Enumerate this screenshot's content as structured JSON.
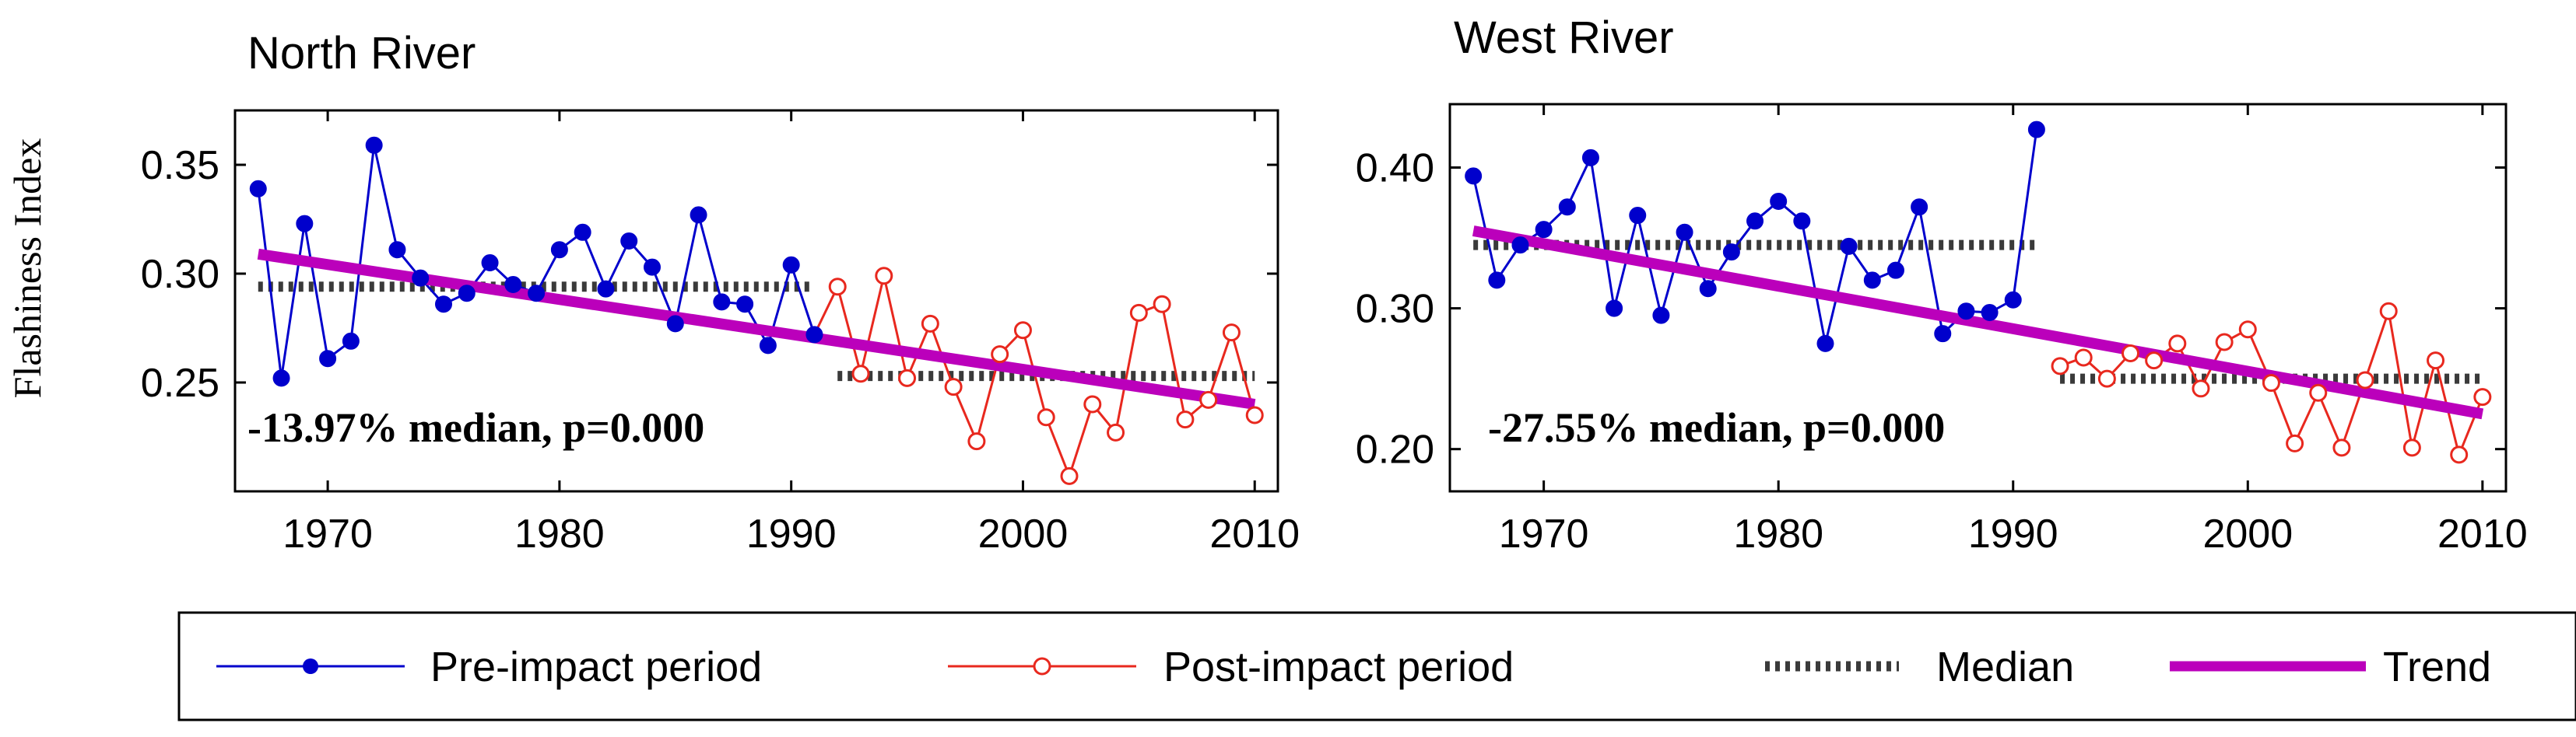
{
  "y_axis_label": "Flashiness Index",
  "colors": {
    "pre": "#0000CC",
    "post": "#E8281E",
    "median": "#3A3A3A",
    "trend": "#BB00BB"
  },
  "legend": {
    "pre": "Pre-impact period",
    "post": "Post-impact period",
    "median": "Median",
    "trend": "Trend"
  },
  "chart_data": [
    {
      "type": "line",
      "title": "North River",
      "ylabel": "Flashiness Index",
      "xlim": [
        1966,
        2011
      ],
      "ylim": [
        0.2,
        0.375
      ],
      "xticks": [
        1970,
        1980,
        1990,
        2000,
        2010
      ],
      "yticks": [
        0.25,
        0.3,
        0.35
      ],
      "ytick_labels": [
        "0.25",
        "0.30",
        "0.35"
      ],
      "annotation": "-13.97% median, p=0.000",
      "series": [
        {
          "name": "Pre-impact period",
          "x": [
            1967,
            1968,
            1969,
            1970,
            1971,
            1972,
            1973,
            1974,
            1975,
            1976,
            1977,
            1978,
            1979,
            1980,
            1981,
            1982,
            1983,
            1984,
            1985,
            1986,
            1987,
            1988,
            1989,
            1990,
            1991
          ],
          "y": [
            0.339,
            0.252,
            0.323,
            0.261,
            0.269,
            0.359,
            0.311,
            0.298,
            0.286,
            0.291,
            0.305,
            0.295,
            0.291,
            0.311,
            0.319,
            0.293,
            0.315,
            0.303,
            0.277,
            0.327,
            0.287,
            0.286,
            0.267,
            0.304,
            0.272
          ]
        },
        {
          "name": "Post-impact period",
          "x": [
            1991,
            1992,
            1993,
            1994,
            1995,
            1996,
            1997,
            1998,
            1999,
            2000,
            2001,
            2002,
            2003,
            2004,
            2005,
            2006,
            2007,
            2008,
            2009,
            2010
          ],
          "y": [
            0.272,
            0.294,
            0.254,
            0.299,
            0.252,
            0.277,
            0.248,
            0.223,
            0.263,
            0.274,
            0.234,
            0.207,
            0.24,
            0.227,
            0.282,
            0.286,
            0.233,
            0.242,
            0.273,
            0.235
          ]
        }
      ],
      "medians": [
        {
          "name": "Median",
          "x": [
            1967,
            1991
          ],
          "y": 0.294
        },
        {
          "name": "Median",
          "x": [
            1992,
            2010
          ],
          "y": 0.253
        }
      ],
      "trend": {
        "name": "Trend",
        "x": [
          1967,
          2010
        ],
        "y": [
          0.309,
          0.24
        ]
      }
    },
    {
      "type": "line",
      "title": "West River",
      "ylabel": "",
      "xlim": [
        1966,
        2011
      ],
      "ylim": [
        0.17,
        0.445
      ],
      "xticks": [
        1970,
        1980,
        1990,
        2000,
        2010
      ],
      "yticks": [
        0.2,
        0.3,
        0.4
      ],
      "ytick_labels": [
        "0.20",
        "0.30",
        "0.40"
      ],
      "annotation": "-27.55% median, p=0.000",
      "series": [
        {
          "name": "Pre-impact period",
          "x": [
            1967,
            1968,
            1969,
            1970,
            1971,
            1972,
            1973,
            1974,
            1975,
            1976,
            1977,
            1978,
            1979,
            1980,
            1981,
            1982,
            1983,
            1984,
            1985,
            1986,
            1987,
            1988,
            1989,
            1990,
            1991
          ],
          "y": [
            0.394,
            0.32,
            0.345,
            0.356,
            0.372,
            0.407,
            0.3,
            0.366,
            0.295,
            0.354,
            0.314,
            0.34,
            0.362,
            0.376,
            0.362,
            0.275,
            0.344,
            0.32,
            0.327,
            0.372,
            0.282,
            0.298,
            0.297,
            0.306,
            0.427
          ]
        },
        {
          "name": "Post-impact period",
          "x": [
            1992,
            1993,
            1994,
            1995,
            1996,
            1997,
            1998,
            1999,
            2000,
            2001,
            2002,
            2003,
            2004,
            2005,
            2006,
            2007,
            2008,
            2009,
            2010
          ],
          "y": [
            0.259,
            0.265,
            0.25,
            0.268,
            0.263,
            0.275,
            0.243,
            0.276,
            0.285,
            0.247,
            0.204,
            0.24,
            0.201,
            0.249,
            0.298,
            0.201,
            0.263,
            0.196,
            0.237
          ]
        }
      ],
      "medians": [
        {
          "name": "Median",
          "x": [
            1967,
            1991
          ],
          "y": 0.345
        },
        {
          "name": "Median",
          "x": [
            1992,
            2010
          ],
          "y": 0.25
        }
      ],
      "trend": {
        "name": "Trend",
        "x": [
          1967,
          2010
        ],
        "y": [
          0.355,
          0.225
        ]
      }
    }
  ]
}
